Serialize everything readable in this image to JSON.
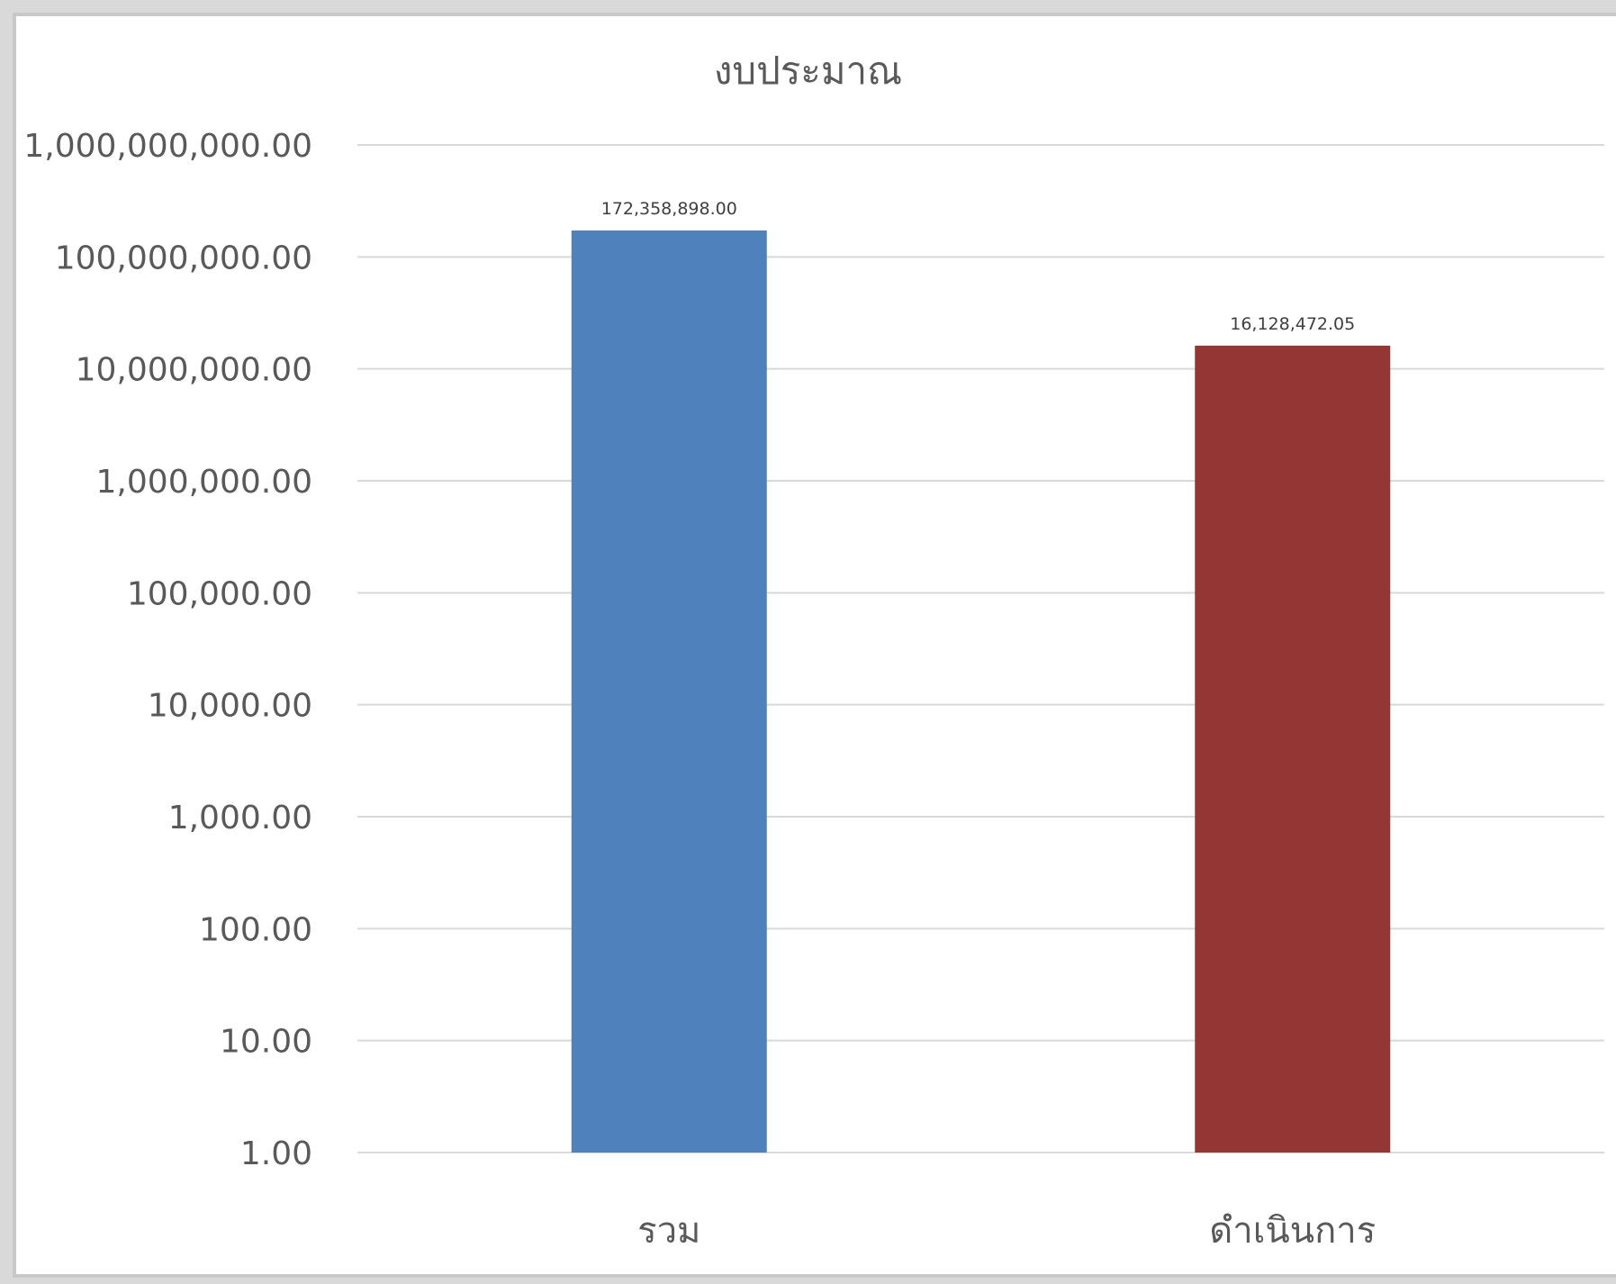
{
  "chart_data": {
    "type": "bar",
    "title": "งบประมาณ",
    "xlabel": "",
    "ylabel": "",
    "y_scale": "log",
    "ylim": [
      1,
      1000000000
    ],
    "y_ticks": [
      1,
      10,
      100,
      1000,
      10000,
      100000,
      1000000,
      10000000,
      100000000,
      1000000000
    ],
    "y_tick_labels": [
      "1.00",
      "10.00",
      "100.00",
      "1,000.00",
      "10,000.00",
      "100,000.00",
      "1,000,000.00",
      "10,000,000.00",
      "100,000,000.00",
      "1,000,000,000.00"
    ],
    "grid": true,
    "legend": "none",
    "categories": [
      "รวม",
      "ดำเนินการ"
    ],
    "values": [
      172358898.0,
      16128472.05
    ],
    "data_labels": [
      "172,358,898.00",
      "16,128,472.05"
    ],
    "colors": [
      "#4f81bd",
      "#943634"
    ]
  }
}
